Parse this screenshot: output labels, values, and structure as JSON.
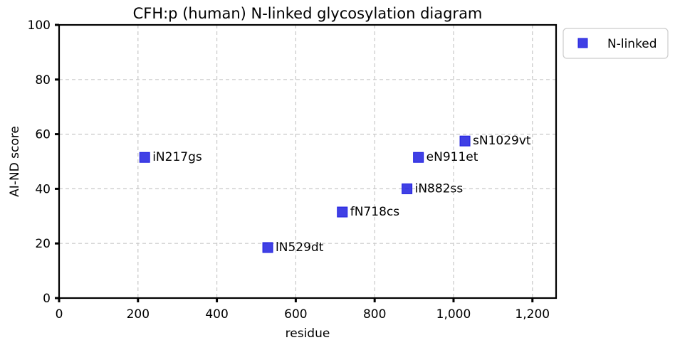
{
  "chart_data": {
    "type": "scatter",
    "title": "CFH:p (human) N-linked glycosylation diagram",
    "xlabel": "residue",
    "ylabel": "AI-ND score",
    "xlim": [
      0,
      1260
    ],
    "ylim": [
      0,
      100
    ],
    "xticks": [
      0,
      200,
      400,
      600,
      800,
      1000,
      1200
    ],
    "xtick_labels": [
      "0",
      "200",
      "400",
      "600",
      "800",
      "1,000",
      "1,200"
    ],
    "yticks": [
      0,
      20,
      40,
      60,
      80,
      100
    ],
    "ytick_labels": [
      "0",
      "20",
      "40",
      "60",
      "80",
      "100"
    ],
    "grid": true,
    "legend_position": "outside-top-right",
    "series": [
      {
        "name": "N-linked",
        "color": "#1f1fe0",
        "marker": "square",
        "points": [
          {
            "x": 217,
            "y": 51.5,
            "label": "iN217gs"
          },
          {
            "x": 529,
            "y": 18.5,
            "label": "lN529dt"
          },
          {
            "x": 718,
            "y": 31.5,
            "label": "fN718cs"
          },
          {
            "x": 882,
            "y": 40.0,
            "label": "iN882ss"
          },
          {
            "x": 911,
            "y": 51.5,
            "label": "eN911et"
          },
          {
            "x": 1029,
            "y": 57.5,
            "label": "sN1029vt"
          }
        ]
      }
    ]
  }
}
